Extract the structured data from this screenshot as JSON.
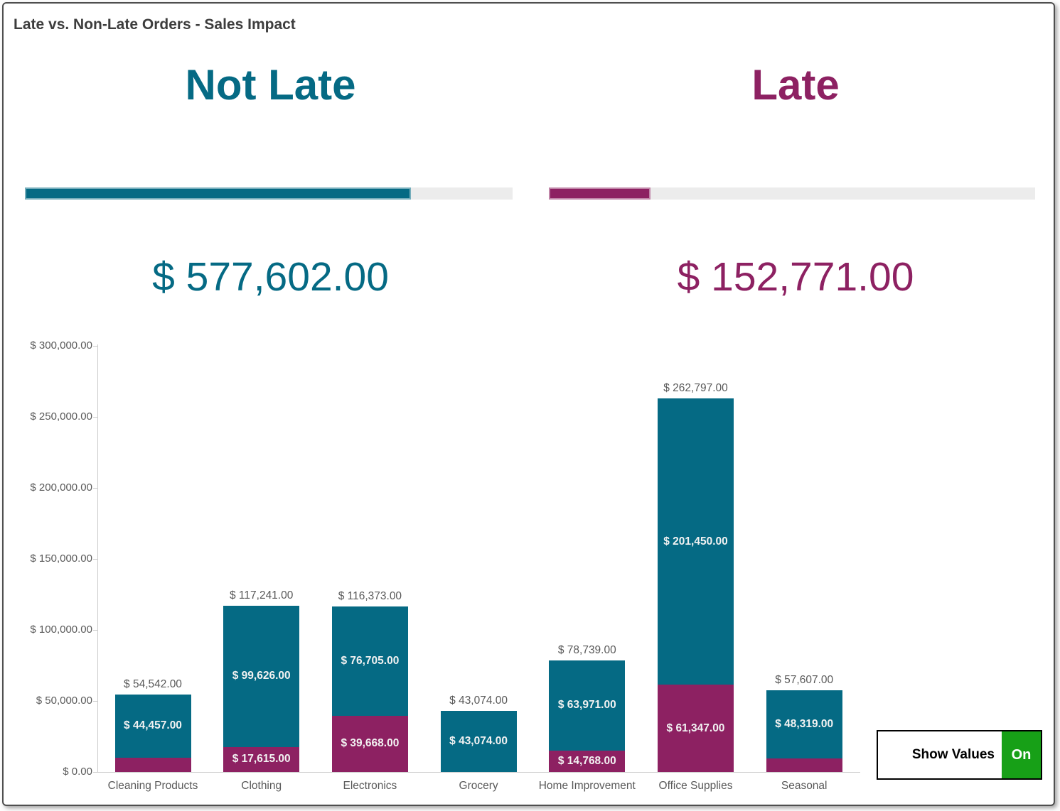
{
  "header": {
    "title": "Late vs. Non-Late Orders - Sales Impact"
  },
  "theme": {
    "not_late_color": "#056A84",
    "late_color": "#8D2162",
    "progress_track_color": "#ECECEC",
    "axis_color": "#CBCBCB",
    "label_color": "#595959",
    "bar_label_color": "#F2F2F2",
    "on_green": "#17A017"
  },
  "kpi": {
    "not_late": {
      "title": "Not Late",
      "value": "$ 577,602.00",
      "fraction": 0.791
    },
    "late": {
      "title": "Late",
      "value": "$ 152,771.00",
      "fraction": 0.209
    }
  },
  "controls": {
    "show_values_label": "Show Values",
    "show_values_state": "On"
  },
  "chart_data": {
    "type": "bar",
    "stacked": true,
    "grid": false,
    "legend": "none",
    "categories": [
      "Cleaning Products",
      "Clothing",
      "Electronics",
      "Grocery",
      "Home Improvement",
      "Office Supplies",
      "Seasonal"
    ],
    "series": [
      {
        "name": "Late",
        "color": "#8D2162",
        "values": [
          10085,
          17615,
          39668,
          0,
          14768,
          61347,
          9288
        ],
        "labels": [
          "",
          "$ 17,615.00",
          "$ 39,668.00",
          "",
          "$ 14,768.00",
          "$ 61,347.00",
          ""
        ]
      },
      {
        "name": "Not Late",
        "color": "#056A84",
        "values": [
          44457,
          99626,
          76705,
          43074,
          63971,
          201450,
          48319
        ],
        "labels": [
          "$ 44,457.00",
          "$ 99,626.00",
          "$ 76,705.00",
          "$ 43,074.00",
          "$ 63,971.00",
          "$ 201,450.00",
          "$ 48,319.00"
        ]
      }
    ],
    "totals": [
      54542,
      117241,
      116373,
      43074,
      78739,
      262797,
      57607
    ],
    "total_labels": [
      "$ 54,542.00",
      "$ 117,241.00",
      "$ 116,373.00",
      "$ 43,074.00",
      "$ 78,739.00",
      "$ 262,797.00",
      "$ 57,607.00"
    ],
    "xlabel": "",
    "ylabel": "",
    "ylim": [
      0,
      300000
    ],
    "yticks": [
      {
        "value": 0,
        "label": "$ 0.00"
      },
      {
        "value": 50000,
        "label": "$ 50,000.00"
      },
      {
        "value": 100000,
        "label": "$ 100,000.00"
      },
      {
        "value": 150000,
        "label": "$ 150,000.00"
      },
      {
        "value": 200000,
        "label": "$ 200,000.00"
      },
      {
        "value": 250000,
        "label": "$ 250,000.00"
      },
      {
        "value": 300000,
        "label": "$ 300,000.00"
      }
    ]
  }
}
